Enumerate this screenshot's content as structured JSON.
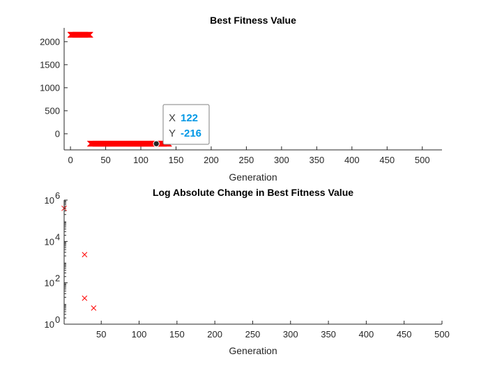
{
  "chart_data": [
    {
      "type": "scatter",
      "title": "Best Fitness Value",
      "xlabel": "Generation",
      "ylabel": "",
      "xlim": [
        -9,
        528
      ],
      "ylim": [
        -350,
        2300
      ],
      "xticks": [
        0,
        50,
        100,
        150,
        200,
        250,
        300,
        350,
        400,
        450,
        500
      ],
      "yticks": [
        0,
        500,
        1000,
        1500,
        2000
      ],
      "marker": "x",
      "color": "#ff0000",
      "series": [
        {
          "segments": [
            {
              "x_start": 0,
              "x_end": 28,
              "y": 2150
            },
            {
              "x_start": 28,
              "x_end": 140,
              "y": -216
            }
          ]
        }
      ],
      "datatip": {
        "x_label": "X",
        "x_value": "122",
        "y_label": "Y",
        "y_value": "-216",
        "x": 122,
        "y": -216
      }
    },
    {
      "type": "scatter",
      "title": "Log Absolute Change in Best Fitness Value",
      "xlabel": "Generation",
      "ylabel": "",
      "yscale": "log",
      "xlim": [
        1,
        500
      ],
      "ylim": [
        1,
        1000000
      ],
      "xticks": [
        50,
        100,
        150,
        200,
        250,
        300,
        350,
        400,
        450,
        500
      ],
      "yticks": [
        {
          "base": "10",
          "exp": "0"
        },
        {
          "base": "10",
          "exp": "2"
        },
        {
          "base": "10",
          "exp": "4"
        },
        {
          "base": "10",
          "exp": "6"
        }
      ],
      "marker": "x",
      "color": "#ff0000",
      "points": [
        {
          "x": 1,
          "y": 400000
        },
        {
          "x": 28,
          "y": 2300
        },
        {
          "x": 28,
          "y": 18
        },
        {
          "x": 40,
          "y": 6
        }
      ]
    }
  ]
}
